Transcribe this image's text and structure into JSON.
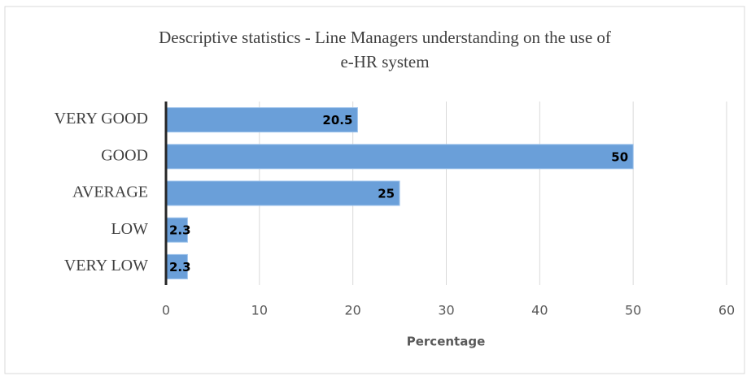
{
  "chart_data": {
    "type": "bar",
    "orientation": "horizontal",
    "title": [
      "Descriptive statistics - Line Managers understanding on the use of",
      "e-HR system"
    ],
    "x_label": "Percentage",
    "categories": [
      "VERY GOOD",
      "GOOD",
      "AVERAGE",
      "LOW",
      "VERY LOW"
    ],
    "values": [
      20.5,
      50,
      25,
      2.3,
      2.3
    ],
    "color": "#6a9fd9",
    "xlim": [
      0,
      60
    ],
    "xticks": [
      0,
      10,
      20,
      30,
      40,
      50,
      60
    ],
    "grid": true
  }
}
